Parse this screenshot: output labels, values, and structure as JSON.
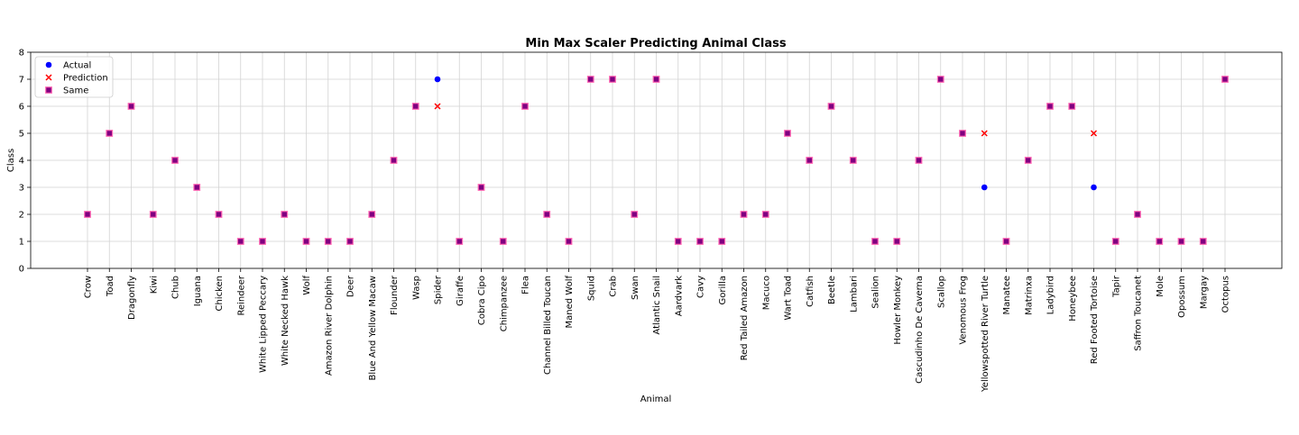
{
  "chart_data": {
    "type": "scatter",
    "title": "Min Max Scaler Predicting Animal Class",
    "xlabel": "Animal",
    "ylabel": "Class",
    "ylim": [
      0,
      8
    ],
    "yticks": [
      0,
      1,
      2,
      3,
      4,
      5,
      6,
      7,
      8
    ],
    "grid": true,
    "legend_position": "top-left",
    "categories": [
      "Crow",
      "Toad",
      "Dragonfly",
      "Kiwi",
      "Chub",
      "Iguana",
      "Chicken",
      "Reindeer",
      "White Lipped Peccary",
      "White Necked Hawk",
      "Wolf",
      "Amazon River Dolphin",
      "Deer",
      "Blue And Yellow Macaw",
      "Flounder",
      "Wasp",
      "Spider",
      "Giraffe",
      "Cobra Cipo",
      "Chimpanzee",
      "Flea",
      "Channel Billed Toucan",
      "Maned Wolf",
      "Squid",
      "Crab",
      "Swan",
      "Atlantic Snail",
      "Aardvark",
      "Cavy",
      "Gorilla",
      "Red Tailed Amazon",
      "Macuco",
      "Wart Toad",
      "Catfish",
      "Beetle",
      "Lambari",
      "Sealion",
      "Howler Monkey",
      "Cascudinho De Caverna",
      "Scallop",
      "Venomous Frog",
      "Yellowspotted River Turtle",
      "Manatee",
      "Matrinxa",
      "Ladybird",
      "Honeybee",
      "Red Footed Tortoise",
      "Tapir",
      "Saffron Toucanet",
      "Mole",
      "Opossum",
      "Margay",
      "Octopus"
    ],
    "series": [
      {
        "name": "Actual",
        "marker": "circle",
        "color": "#0000ff",
        "values": [
          2,
          5,
          6,
          2,
          4,
          3,
          2,
          1,
          1,
          2,
          1,
          1,
          1,
          2,
          4,
          6,
          7,
          1,
          3,
          1,
          6,
          2,
          1,
          7,
          7,
          2,
          7,
          1,
          1,
          1,
          2,
          2,
          5,
          4,
          6,
          4,
          1,
          1,
          4,
          7,
          5,
          3,
          1,
          4,
          6,
          6,
          3,
          1,
          2,
          1,
          1,
          1,
          7
        ]
      },
      {
        "name": "Prediction",
        "marker": "x",
        "color": "#ff0000",
        "values": [
          2,
          5,
          6,
          2,
          4,
          3,
          2,
          1,
          1,
          2,
          1,
          1,
          1,
          2,
          4,
          6,
          6,
          1,
          3,
          1,
          6,
          2,
          1,
          7,
          7,
          2,
          7,
          1,
          1,
          1,
          2,
          2,
          5,
          4,
          6,
          4,
          1,
          1,
          4,
          7,
          5,
          5,
          1,
          4,
          6,
          6,
          5,
          1,
          2,
          1,
          1,
          1,
          7
        ]
      },
      {
        "name": "Same",
        "marker": "square",
        "color": "#800080",
        "edge_color": "#ff69b4"
      }
    ]
  }
}
